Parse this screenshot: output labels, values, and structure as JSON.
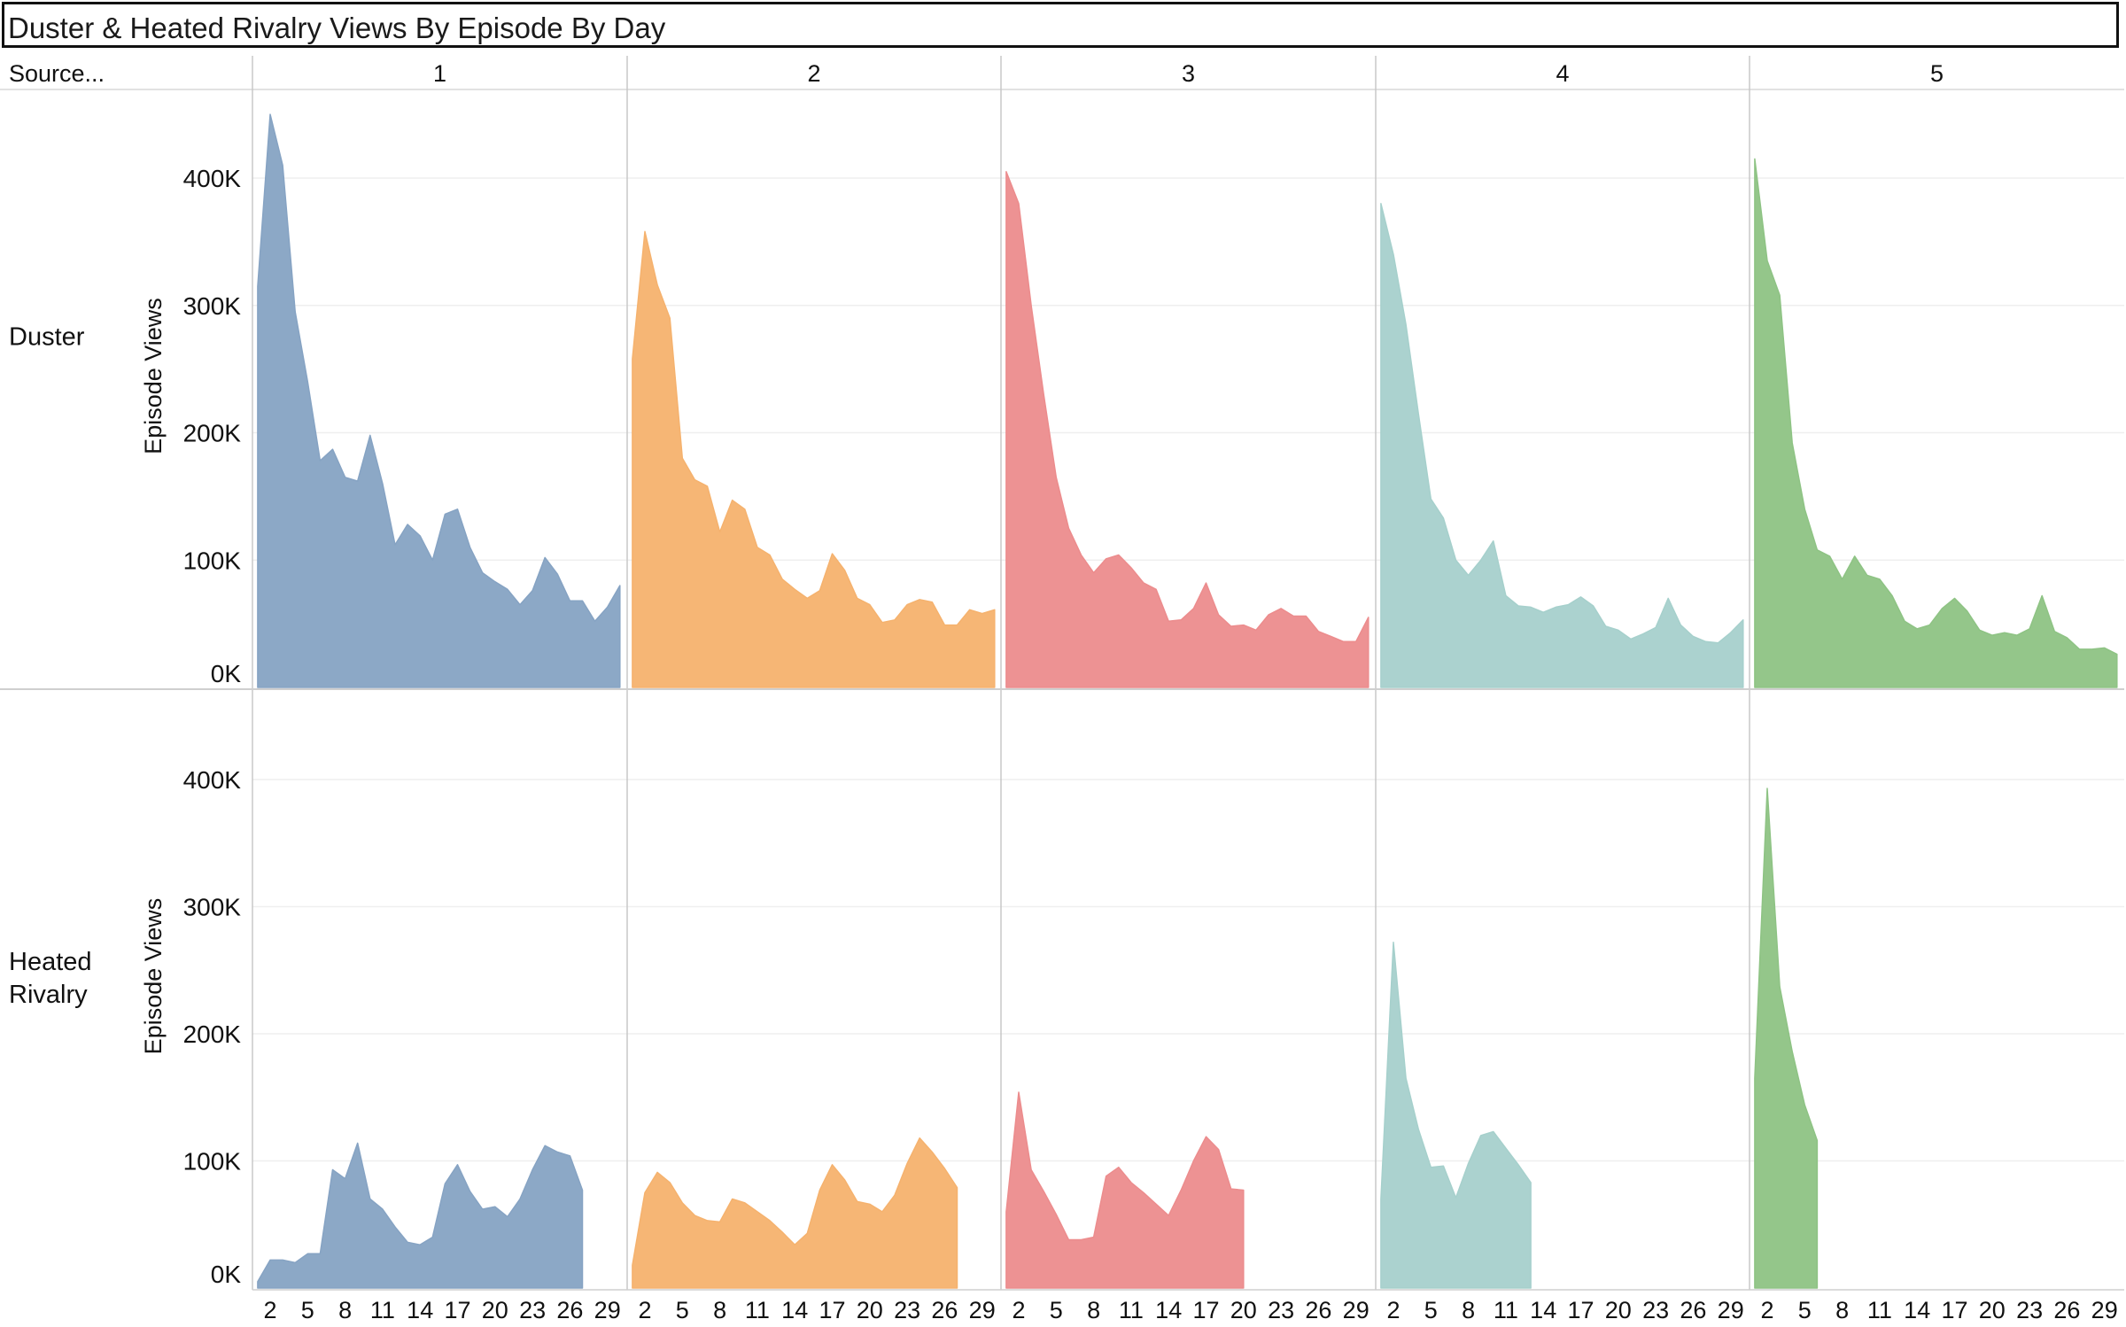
{
  "title": "Duster & Heated Rivalry Views By Episode By Day",
  "row_header": "Source...",
  "colors": {
    "1": "#86a3c3",
    "2": "#f5b26e",
    "3": "#ec8c8d",
    "4": "#a6d0cc",
    "5": "#8ec384"
  },
  "chart_data": {
    "type": "area",
    "title": "Duster & Heated Rivalry Views By Episode By Day",
    "ylabel": "Episode Views",
    "xlabel": "",
    "ylim": [
      0,
      460000
    ],
    "y_ticks": [
      {
        "v": 0,
        "label": "0K"
      },
      {
        "v": 100000,
        "label": "100K"
      },
      {
        "v": 200000,
        "label": "200K"
      },
      {
        "v": 300000,
        "label": "300K"
      },
      {
        "v": 400000,
        "label": "400K"
      }
    ],
    "x_ticks": [
      2,
      5,
      8,
      11,
      14,
      17,
      20,
      23,
      26,
      29
    ],
    "x_range": [
      1,
      30
    ],
    "columns": [
      "1",
      "2",
      "3",
      "4",
      "5"
    ],
    "rows": [
      {
        "label": "Duster",
        "series": [
          {
            "episode": "1",
            "start_day": 1,
            "values": [
              315000,
              450000,
              410000,
              295000,
              240000,
              178000,
              187000,
              165000,
              162000,
              198000,
              160000,
              112000,
              128000,
              119000,
              100000,
              136000,
              140000,
              110000,
              90000,
              83000,
              77000,
              65000,
              76000,
              102000,
              89000,
              68000,
              68000,
              52000,
              63000,
              80000
            ]
          },
          {
            "episode": "2",
            "start_day": 1,
            "values": [
              258000,
              358000,
              316000,
              290000,
              180000,
              163000,
              158000,
              122000,
              147000,
              140000,
              110000,
              104000,
              85000,
              77000,
              70000,
              76000,
              105000,
              92000,
              70000,
              65000,
              51000,
              53000,
              65000,
              69000,
              67000,
              49000,
              49000,
              61000,
              58000,
              61000
            ]
          },
          {
            "episode": "3",
            "start_day": 1,
            "values": [
              405000,
              380000,
              300000,
              230000,
              165000,
              125000,
              104000,
              90000,
              101000,
              104000,
              94000,
              82000,
              77000,
              52000,
              53000,
              62000,
              82000,
              57000,
              48000,
              49000,
              45000,
              57000,
              62000,
              56000,
              56000,
              44000,
              40000,
              36000,
              36000,
              55000
            ]
          },
          {
            "episode": "4",
            "start_day": 1,
            "values": [
              380000,
              340000,
              285000,
              215000,
              148000,
              133000,
              100000,
              88000,
              100000,
              115000,
              72000,
              64000,
              63000,
              59000,
              63000,
              65000,
              71000,
              64000,
              48000,
              45000,
              38000,
              42000,
              47000,
              70000,
              49000,
              40000,
              36000,
              35000,
              43000,
              53000
            ]
          },
          {
            "episode": "5",
            "start_day": 1,
            "values": [
              415000,
              335000,
              308000,
              192000,
              140000,
              108000,
              103000,
              85000,
              103000,
              88000,
              85000,
              72000,
              52000,
              46000,
              49000,
              62000,
              70000,
              60000,
              45000,
              41000,
              43000,
              41000,
              46000,
              72000,
              44000,
              39000,
              30000,
              30000,
              31000,
              26000
            ]
          }
        ]
      },
      {
        "label": "Heated Rivalry",
        "series": [
          {
            "episode": "1",
            "start_day": 1,
            "values": [
              5000,
              22000,
              22000,
              20000,
              27000,
              27000,
              93000,
              86000,
              114000,
              70000,
              62000,
              48000,
              36000,
              34000,
              40000,
              82000,
              97000,
              76000,
              62000,
              64000,
              56000,
              70000,
              93000,
              112000,
              107000,
              104000,
              77000
            ]
          },
          {
            "episode": "2",
            "start_day": 1,
            "values": [
              18000,
              75000,
              91000,
              83000,
              67000,
              57000,
              53000,
              52000,
              70000,
              67000,
              60000,
              53000,
              44000,
              34000,
              43000,
              77000,
              97000,
              85000,
              68000,
              66000,
              60000,
              73000,
              98000,
              118000,
              107000,
              94000,
              79000
            ]
          },
          {
            "episode": "3",
            "start_day": 1,
            "values": [
              60000,
              154000,
              93000,
              76000,
              58000,
              38000,
              38000,
              40000,
              88000,
              95000,
              83000,
              75000,
              66000,
              57000,
              77000,
              100000,
              119000,
              109000,
              78000,
              77000
            ]
          },
          {
            "episode": "4",
            "start_day": 1,
            "values": [
              70000,
              272000,
              165000,
              125000,
              95000,
              96000,
              71000,
              98000,
              120000,
              123000,
              110000,
              97000,
              83000
            ]
          },
          {
            "episode": "5",
            "start_day": 1,
            "values": [
              165000,
              393000,
              237000,
              186000,
              144000,
              116000
            ]
          }
        ]
      }
    ]
  }
}
